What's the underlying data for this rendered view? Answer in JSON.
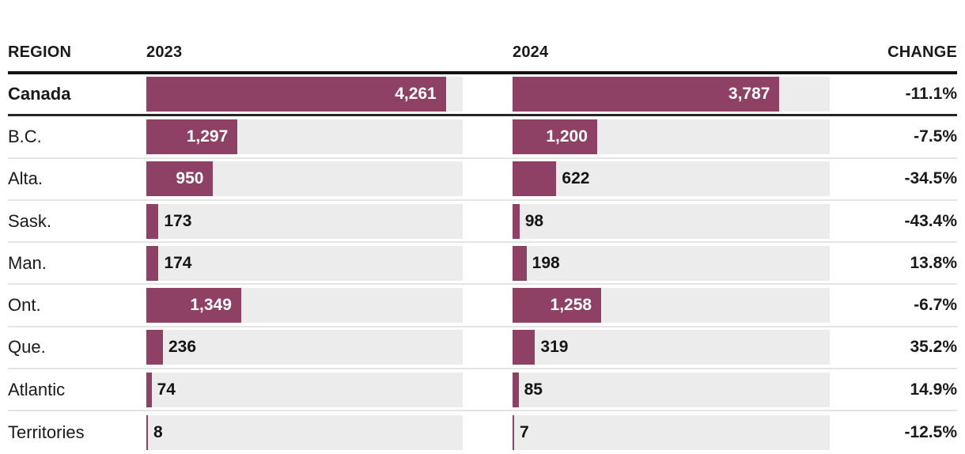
{
  "header": {
    "region": "REGION",
    "col_2023": "2023",
    "col_2024": "2024",
    "change": "CHANGE"
  },
  "colors": {
    "bar": "#8e4164",
    "track": "#ececec",
    "header_rule": "#141414",
    "row_rule": "#e4e4e4",
    "text": "#1a1a1a"
  },
  "chart_data": {
    "type": "bar",
    "title": "",
    "orientation": "horizontal",
    "categories": [
      "Canada",
      "B.C.",
      "Alta.",
      "Sask.",
      "Man.",
      "Ont.",
      "Que.",
      "Atlantic",
      "Territories"
    ],
    "series": [
      {
        "name": "2023",
        "values": [
          4261,
          1297,
          950,
          173,
          174,
          1349,
          236,
          74,
          8
        ]
      },
      {
        "name": "2024",
        "values": [
          3787,
          1200,
          622,
          98,
          198,
          1258,
          319,
          85,
          7
        ]
      }
    ],
    "change_percent": [
      -11.1,
      -7.5,
      -34.5,
      -43.4,
      13.8,
      -6.7,
      35.2,
      14.9,
      -12.5
    ],
    "xlim": [
      0,
      4500
    ],
    "grid": false,
    "legend_position": "none",
    "rows": [
      {
        "region": "Canada",
        "v2023": "4,261",
        "v2024": "3,787",
        "change": "-11.1%",
        "bold": true
      },
      {
        "region": "B.C.",
        "v2023": "1,297",
        "v2024": "1,200",
        "change": "-7.5%",
        "bold": false
      },
      {
        "region": "Alta.",
        "v2023": "950",
        "v2024": "622",
        "change": "-34.5%",
        "bold": false
      },
      {
        "region": "Sask.",
        "v2023": "173",
        "v2024": "98",
        "change": "-43.4%",
        "bold": false
      },
      {
        "region": "Man.",
        "v2023": "174",
        "v2024": "198",
        "change": "13.8%",
        "bold": false
      },
      {
        "region": "Ont.",
        "v2023": "1,349",
        "v2024": "1,258",
        "change": "-6.7%",
        "bold": false
      },
      {
        "region": "Que.",
        "v2023": "236",
        "v2024": "319",
        "change": "35.2%",
        "bold": false
      },
      {
        "region": "Atlantic",
        "v2023": "74",
        "v2024": "85",
        "change": "14.9%",
        "bold": false
      },
      {
        "region": "Territories",
        "v2023": "8",
        "v2024": "7",
        "change": "-12.5%",
        "bold": false
      }
    ]
  }
}
